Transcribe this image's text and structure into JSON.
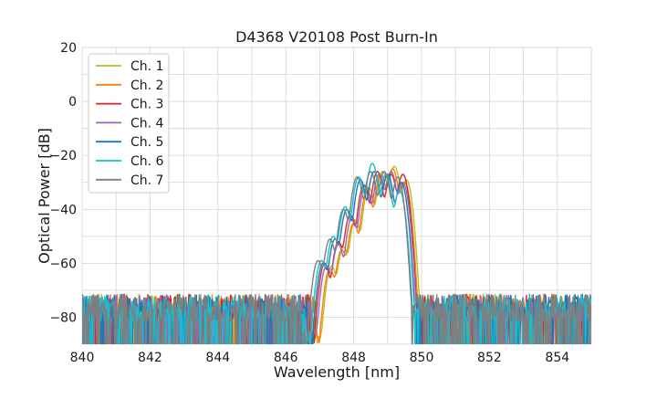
{
  "chart_data": {
    "type": "line",
    "title": "D4368 V20108 Post Burn-In",
    "xlabel": "Wavelength [nm]",
    "ylabel": "Optical Power [dB]",
    "xlim": [
      840,
      855
    ],
    "ylim": [
      -90,
      20
    ],
    "x_ticks": [
      840,
      842,
      844,
      846,
      848,
      850,
      852,
      854
    ],
    "y_ticks": [
      20,
      0,
      -20,
      -40,
      -60,
      -80
    ],
    "x_tick_labels": [
      "840",
      "842",
      "844",
      "846",
      "848",
      "850",
      "852",
      "854"
    ],
    "y_tick_labels": [
      "20",
      "0",
      "−20",
      "−40",
      "−60",
      "−80"
    ],
    "grid": true,
    "legend_position": "top-left",
    "noise_floor_db": -78,
    "series": [
      {
        "name": "Ch. 1",
        "color": "#bcbd22",
        "peaks": [
          [
            847.35,
            -61
          ],
          [
            847.7,
            -54
          ],
          [
            848.05,
            -44
          ],
          [
            848.45,
            -32
          ],
          [
            848.85,
            -26
          ],
          [
            849.2,
            -24
          ],
          [
            849.55,
            -29
          ]
        ]
      },
      {
        "name": "Ch. 2",
        "color": "#ff7f0e",
        "peaks": [
          [
            847.3,
            -62
          ],
          [
            847.65,
            -55
          ],
          [
            848.0,
            -45
          ],
          [
            848.4,
            -33
          ],
          [
            848.8,
            -27
          ],
          [
            849.15,
            -25
          ],
          [
            849.5,
            -30
          ]
        ]
      },
      {
        "name": "Ch. 3",
        "color": "#d62728",
        "peaks": [
          [
            847.15,
            -60
          ],
          [
            847.55,
            -52
          ],
          [
            847.9,
            -42
          ],
          [
            848.3,
            -31
          ],
          [
            848.7,
            -26
          ],
          [
            849.1,
            -27
          ],
          [
            849.45,
            -27
          ]
        ]
      },
      {
        "name": "Ch. 4",
        "color": "#9467bd",
        "peaks": [
          [
            847.2,
            -61
          ],
          [
            847.55,
            -53
          ],
          [
            847.95,
            -43
          ],
          [
            848.35,
            -31
          ],
          [
            848.75,
            -27
          ],
          [
            849.1,
            -26
          ],
          [
            849.45,
            -30
          ]
        ]
      },
      {
        "name": "Ch. 5",
        "color": "#1f77b4",
        "peaks": [
          [
            847.1,
            -60
          ],
          [
            847.45,
            -51
          ],
          [
            847.8,
            -40
          ],
          [
            848.2,
            -29
          ],
          [
            848.6,
            -26
          ],
          [
            849.0,
            -27
          ],
          [
            849.4,
            -30
          ]
        ]
      },
      {
        "name": "Ch. 6",
        "color": "#17becf",
        "peaks": [
          [
            847.05,
            -59
          ],
          [
            847.4,
            -50
          ],
          [
            847.75,
            -39
          ],
          [
            848.15,
            -28
          ],
          [
            848.55,
            -23
          ],
          [
            848.95,
            -27
          ],
          [
            849.35,
            -33
          ]
        ]
      },
      {
        "name": "Ch. 7",
        "color": "#7f7f7f",
        "peaks": [
          [
            846.95,
            -59
          ],
          [
            847.3,
            -51
          ],
          [
            847.7,
            -40
          ],
          [
            848.1,
            -28
          ],
          [
            848.5,
            -26
          ],
          [
            848.9,
            -26
          ],
          [
            849.3,
            -28
          ]
        ]
      }
    ]
  }
}
